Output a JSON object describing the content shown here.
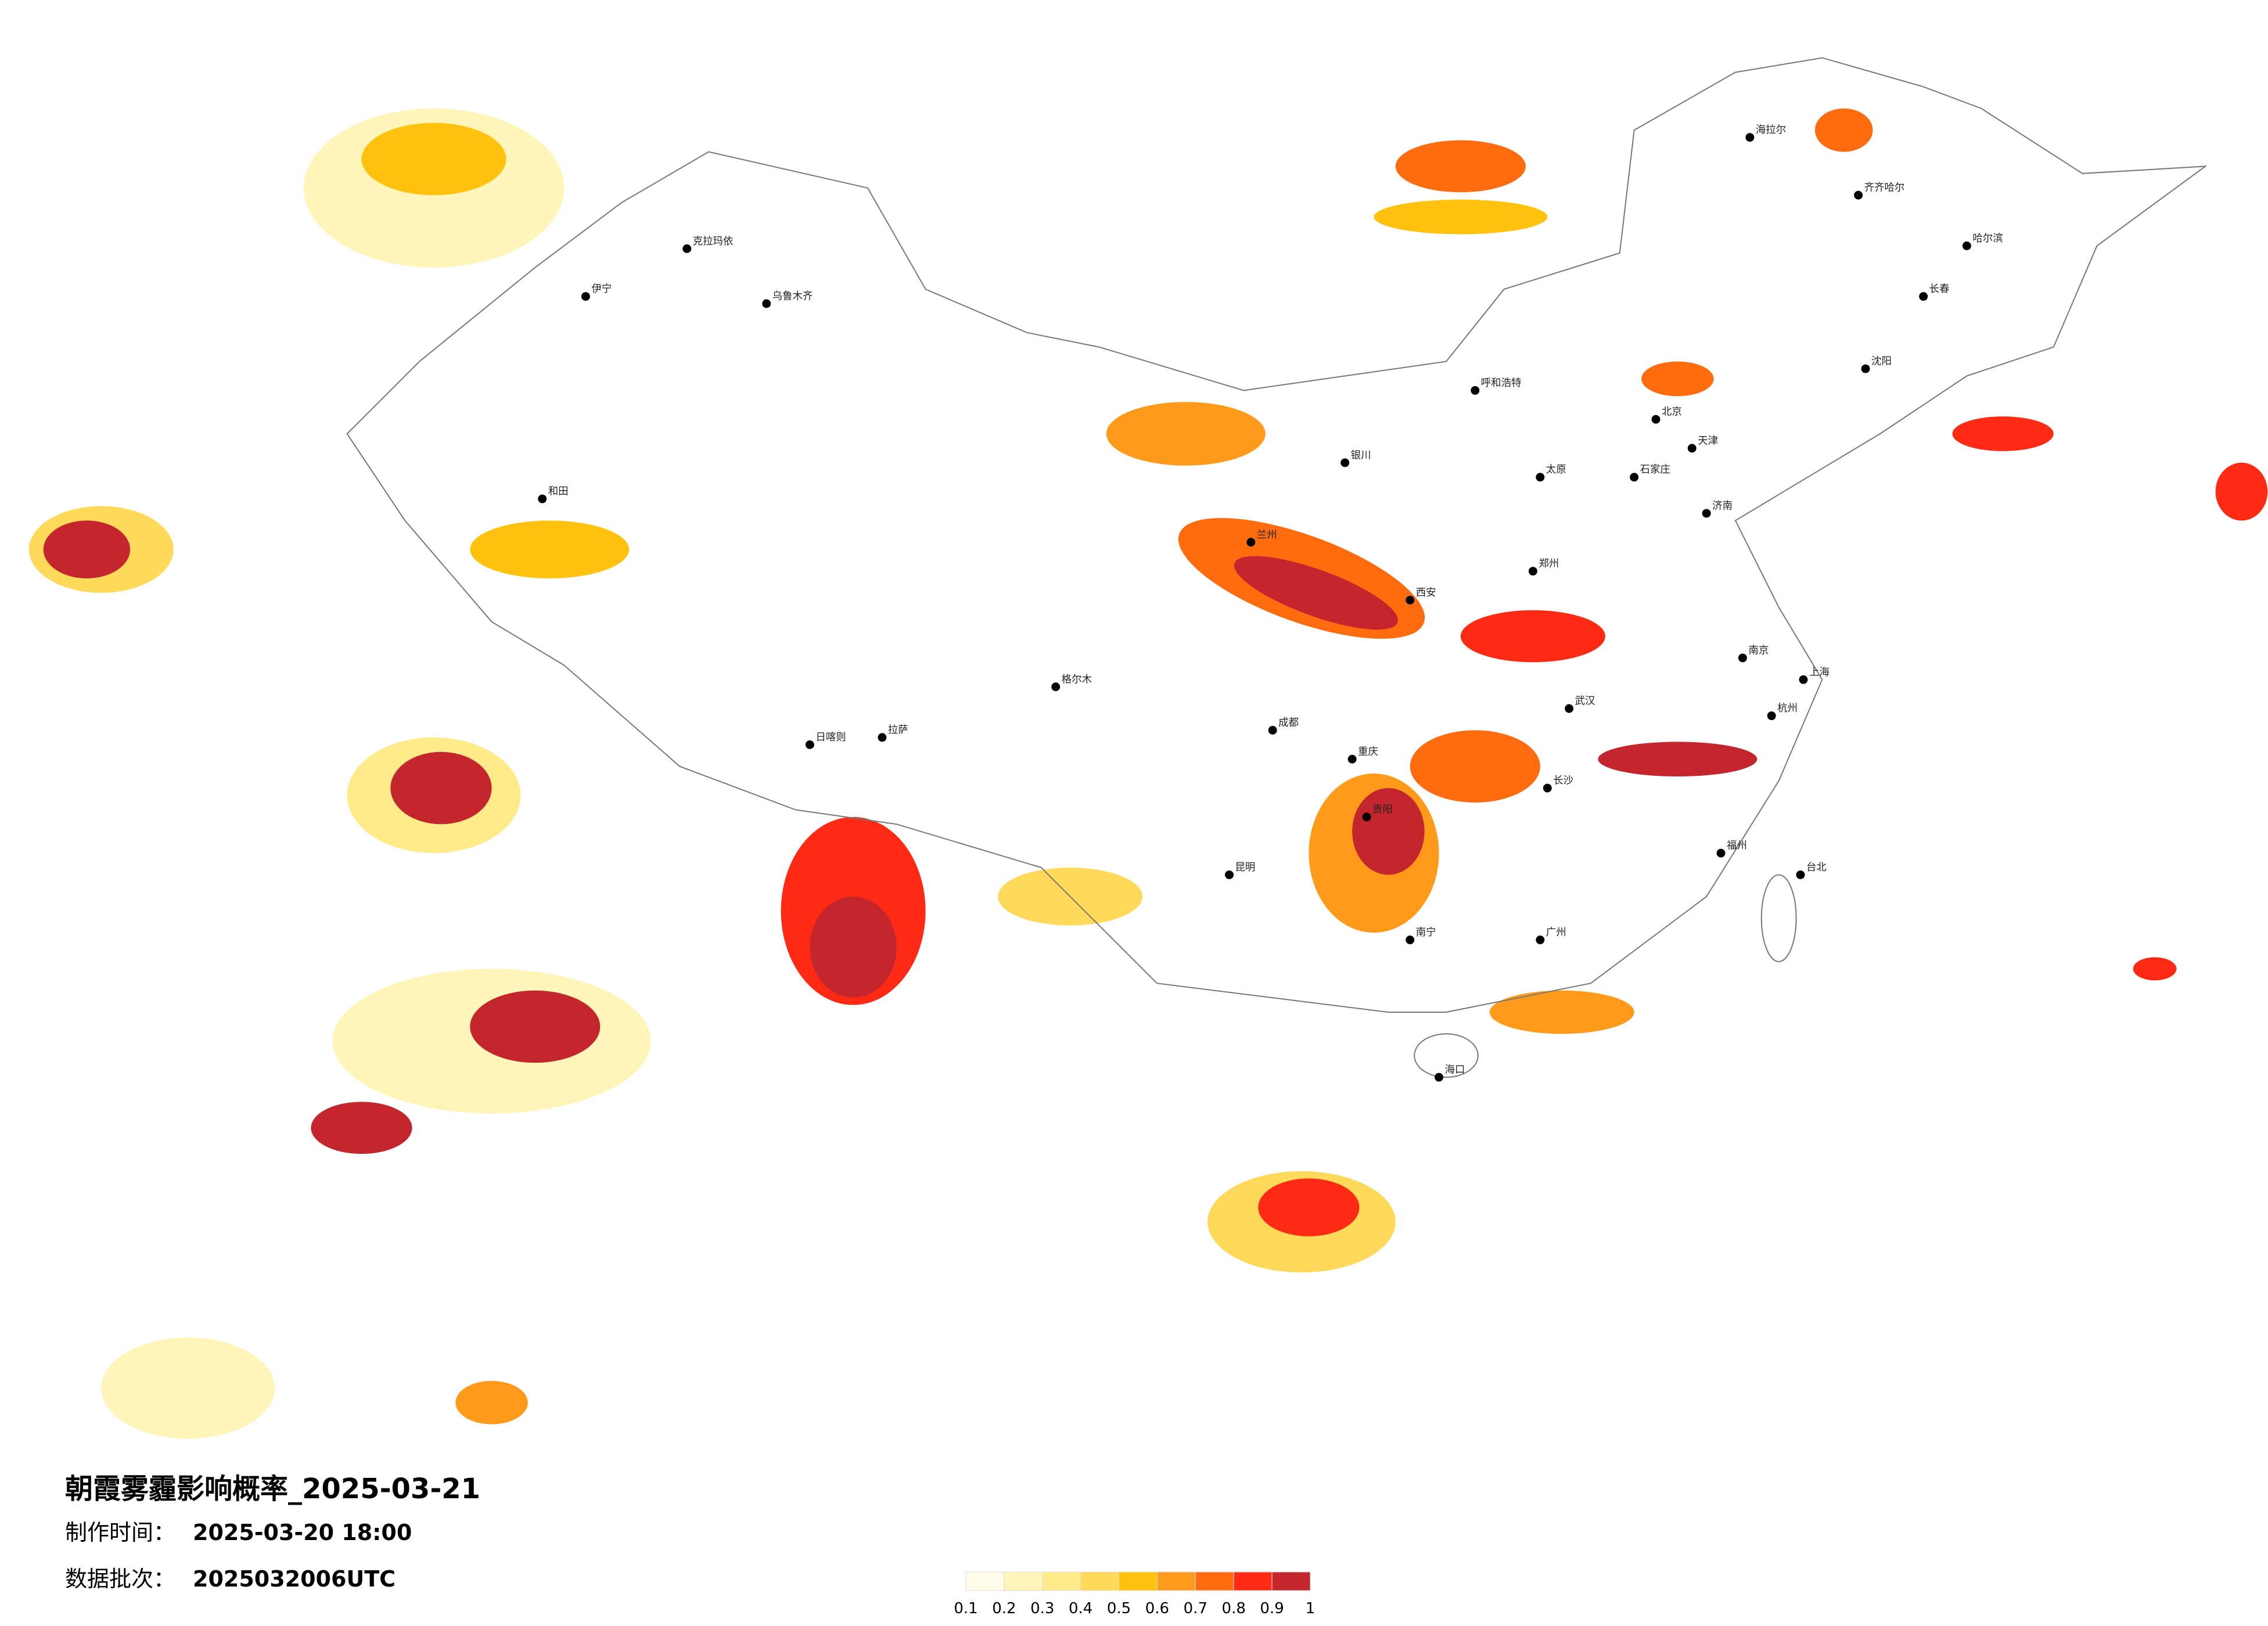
{
  "title": "朝霞雾霾影响概率_2025-03-21",
  "made_time": {
    "label": "制作时间：",
    "value": "2025-03-20 18:00"
  },
  "batch": {
    "label": "数据批次：",
    "value": "2025032006UTC"
  },
  "legend": {
    "ticks": [
      0.1,
      0.2,
      0.3,
      0.4,
      0.5,
      0.6,
      0.7,
      0.8,
      0.9,
      1
    ],
    "colors": [
      "#fffce8",
      "#fff5b8",
      "#ffeb8a",
      "#ffd95a",
      "#ffc20e",
      "#ff9a1a",
      "#ff6c10",
      "#ff2a14",
      "#c4262e"
    ]
  },
  "cities": [
    "克拉玛依",
    "伊宁",
    "乌鲁木齐",
    "和田",
    "日喀则",
    "拉萨",
    "格尔木",
    "兰州",
    "银川",
    "呼和浩特",
    "海拉尔",
    "齐齐哈尔",
    "哈尔滨",
    "长春",
    "沈阳",
    "北京",
    "天津",
    "石家庄",
    "太原",
    "济南",
    "西安",
    "郑州",
    "武汉",
    "南京",
    "上海",
    "杭州",
    "成都",
    "重庆",
    "长沙",
    "贵阳",
    "昆明",
    "南宁",
    "广州",
    "福州",
    "台北",
    "海口"
  ]
}
